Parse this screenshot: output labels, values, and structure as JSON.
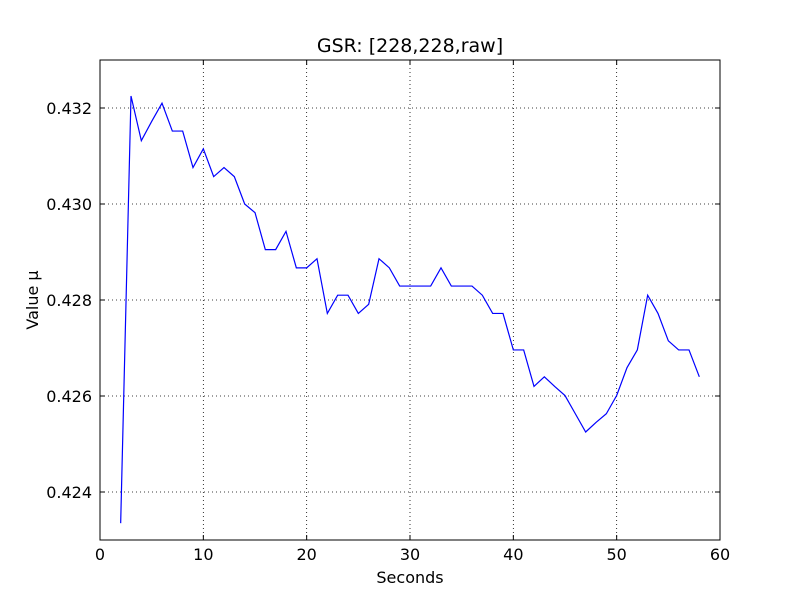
{
  "chart_data": {
    "type": "line",
    "title": "GSR: [228,228,raw]",
    "xlabel": "Seconds",
    "ylabel": "Value µ",
    "xlim": [
      0,
      60
    ],
    "ylim": [
      0.423,
      0.433
    ],
    "grid": true,
    "x_ticks": [
      0,
      10,
      20,
      30,
      40,
      50,
      60
    ],
    "x_tick_labels": [
      "0",
      "10",
      "20",
      "30",
      "40",
      "50",
      "60"
    ],
    "y_ticks": [
      0.424,
      0.426,
      0.428,
      0.43,
      0.432
    ],
    "y_tick_labels": [
      "0.424",
      "0.426",
      "0.428",
      "0.430",
      "0.432"
    ],
    "line_color": "#0000ff",
    "series": [
      {
        "x": [
          2,
          3,
          4,
          5,
          6,
          7,
          8,
          9,
          10,
          11,
          12,
          13,
          14,
          15,
          16,
          17,
          18,
          19,
          20,
          21,
          22,
          23,
          24,
          25,
          26,
          27,
          28,
          29,
          30,
          31,
          32,
          33,
          34,
          35,
          36,
          37,
          38,
          39,
          40,
          41,
          42,
          43,
          44,
          45,
          46,
          47,
          48,
          49,
          50,
          51,
          52,
          53,
          54,
          55,
          56,
          57,
          58
        ],
        "values": [
          0.42335,
          0.43225,
          0.43132,
          0.43172,
          0.4321,
          0.43152,
          0.43152,
          0.43076,
          0.43115,
          0.43057,
          0.43076,
          0.43057,
          0.43,
          0.42982,
          0.42905,
          0.42905,
          0.42943,
          0.42867,
          0.42867,
          0.42886,
          0.42772,
          0.4281,
          0.4281,
          0.42772,
          0.42791,
          0.42886,
          0.42867,
          0.42829,
          0.42829,
          0.42829,
          0.42829,
          0.42867,
          0.42829,
          0.42829,
          0.42829,
          0.4281,
          0.42772,
          0.42772,
          0.42696,
          0.42696,
          0.4262,
          0.4264,
          0.4262,
          0.42601,
          0.42563,
          0.42525,
          0.42545,
          0.42563,
          0.42601,
          0.42659,
          0.42696,
          0.4281,
          0.42772,
          0.42715,
          0.42696,
          0.42696,
          0.4264
        ]
      }
    ]
  }
}
